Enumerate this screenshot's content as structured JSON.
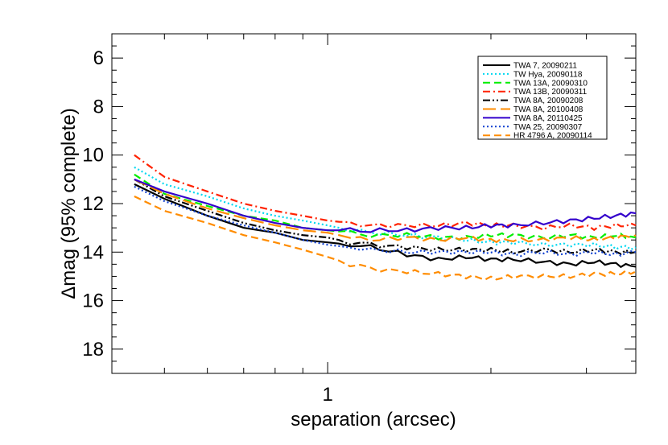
{
  "chart_data": {
    "type": "line",
    "title": "",
    "xlabel": "separation (arcsec)",
    "ylabel": "Δmag (95% complete)",
    "x_scale": "log",
    "xlim": [
      0.4,
      3.7
    ],
    "ylim": [
      19,
      5
    ],
    "y_inverted": true,
    "x_ticks": [
      1
    ],
    "x_tick_labels": [
      "1"
    ],
    "y_ticks": [
      6,
      8,
      10,
      12,
      14,
      16,
      18
    ],
    "y_tick_labels": [
      "6",
      "8",
      "10",
      "12",
      "14",
      "16",
      "18"
    ],
    "grid": false,
    "legend_position": "top-right",
    "series": [
      {
        "name": "TWA 7, 20090211",
        "color": "#000000",
        "dash": "solid",
        "x": [
          0.44,
          0.5,
          0.6,
          0.7,
          0.8,
          0.9,
          1.0,
          1.1,
          1.2,
          1.4,
          1.6,
          1.8,
          2.0,
          2.2,
          2.5,
          2.8,
          3.1,
          3.4,
          3.7
        ],
        "y": [
          11.2,
          11.8,
          12.5,
          13.0,
          13.2,
          13.5,
          13.6,
          13.7,
          13.8,
          14.1,
          14.3,
          14.2,
          14.3,
          14.3,
          14.4,
          14.5,
          14.4,
          14.5,
          14.6
        ]
      },
      {
        "name": "TW Hya, 20090118",
        "color": "#00d8f0",
        "dash": "dotted",
        "x": [
          0.44,
          0.5,
          0.6,
          0.7,
          0.8,
          0.9,
          1.0,
          1.1,
          1.2,
          1.4,
          1.6,
          1.8,
          2.0,
          2.2,
          2.5,
          2.8,
          3.1,
          3.4,
          3.7
        ],
        "y": [
          10.5,
          11.2,
          11.7,
          12.2,
          12.5,
          12.7,
          12.9,
          13.1,
          13.2,
          13.3,
          13.4,
          13.5,
          13.6,
          13.6,
          13.7,
          13.7,
          13.7,
          13.8,
          13.8
        ]
      },
      {
        "name": "TWA 13A, 20090310",
        "color": "#00ee00",
        "dash": "dashed",
        "x": [
          0.44,
          0.5,
          0.6,
          0.7,
          0.8,
          0.9,
          1.0,
          1.1,
          1.2,
          1.4,
          1.6,
          1.8,
          2.0,
          2.2,
          2.5,
          2.8,
          3.1,
          3.4,
          3.7
        ],
        "y": [
          10.8,
          11.6,
          12.1,
          12.5,
          12.7,
          13.0,
          13.1,
          13.2,
          13.3,
          13.3,
          13.4,
          13.4,
          13.3,
          13.3,
          13.4,
          13.3,
          13.4,
          13.3,
          13.4
        ]
      },
      {
        "name": "TWA 13B, 20090311",
        "color": "#ff2200",
        "dash": "dashdot",
        "x": [
          0.44,
          0.5,
          0.6,
          0.7,
          0.8,
          0.9,
          1.0,
          1.1,
          1.2,
          1.4,
          1.6,
          1.8,
          2.0,
          2.2,
          2.5,
          2.8,
          3.1,
          3.4,
          3.7
        ],
        "y": [
          10.0,
          10.9,
          11.5,
          12.0,
          12.3,
          12.5,
          12.7,
          12.8,
          12.9,
          12.9,
          12.9,
          12.8,
          12.9,
          12.9,
          13.0,
          12.9,
          13.0,
          12.9,
          12.9
        ]
      },
      {
        "name": "TWA 8A, 20090208",
        "color": "#000000",
        "dash": "dashdotdot",
        "x": [
          0.44,
          0.5,
          0.6,
          0.7,
          0.8,
          0.9,
          1.0,
          1.1,
          1.2,
          1.4,
          1.6,
          1.8,
          2.0,
          2.2,
          2.5,
          2.8,
          3.1,
          3.4,
          3.7
        ],
        "y": [
          11.0,
          11.7,
          12.3,
          12.8,
          13.1,
          13.3,
          13.4,
          13.6,
          13.7,
          13.8,
          13.9,
          13.9,
          13.9,
          14.0,
          13.9,
          14.0,
          13.9,
          14.0,
          14.0
        ]
      },
      {
        "name": "TWA 8A, 20100408",
        "color": "#ff8c00",
        "dash": "longdash",
        "x": [
          0.44,
          0.5,
          0.6,
          0.7,
          0.8,
          0.9,
          1.0,
          1.1,
          1.2,
          1.4,
          1.6,
          1.8,
          2.0,
          2.2,
          2.5,
          2.8,
          3.1,
          3.4,
          3.7
        ],
        "y": [
          11.0,
          11.6,
          12.2,
          12.6,
          12.9,
          13.1,
          13.2,
          13.4,
          13.5,
          13.4,
          13.5,
          13.4,
          13.5,
          13.5,
          13.5,
          13.4,
          13.5,
          13.4,
          13.3
        ]
      },
      {
        "name": "TWA 8A, 20110425",
        "color": "#3300cc",
        "dash": "solid",
        "x": [
          0.44,
          0.5,
          0.6,
          0.7,
          0.8,
          0.9,
          1.0,
          1.1,
          1.2,
          1.4,
          1.6,
          1.8,
          2.0,
          2.2,
          2.5,
          2.8,
          3.1,
          3.4,
          3.7
        ],
        "y": [
          11.0,
          11.5,
          12.0,
          12.5,
          12.8,
          13.0,
          13.1,
          13.1,
          13.1,
          13.1,
          13.0,
          13.0,
          12.9,
          12.9,
          12.8,
          12.7,
          12.6,
          12.5,
          12.4
        ]
      },
      {
        "name": "TWA 25, 20090307",
        "color": "#1040d0",
        "dash": "dotted",
        "x": [
          0.44,
          0.5,
          0.6,
          0.7,
          0.8,
          0.9,
          1.0,
          1.1,
          1.2,
          1.4,
          1.6,
          1.8,
          2.0,
          2.2,
          2.5,
          2.8,
          3.1,
          3.4,
          3.7
        ],
        "y": [
          11.3,
          11.9,
          12.5,
          12.9,
          13.2,
          13.5,
          13.7,
          13.8,
          13.9,
          14.0,
          14.0,
          14.0,
          14.0,
          14.1,
          14.0,
          14.1,
          14.0,
          14.1,
          14.0
        ]
      },
      {
        "name": "HR 4796 A, 20090114",
        "color": "#ff8c00",
        "dash": "dashed",
        "x": [
          0.44,
          0.5,
          0.6,
          0.7,
          0.8,
          0.9,
          1.0,
          1.1,
          1.2,
          1.4,
          1.6,
          1.8,
          2.0,
          2.2,
          2.5,
          2.8,
          3.1,
          3.4,
          3.7
        ],
        "y": [
          11.7,
          12.3,
          12.8,
          13.3,
          13.6,
          13.9,
          14.2,
          14.5,
          14.7,
          14.8,
          14.9,
          15.0,
          15.1,
          15.0,
          15.0,
          15.0,
          14.9,
          14.9,
          14.8
        ]
      }
    ]
  }
}
